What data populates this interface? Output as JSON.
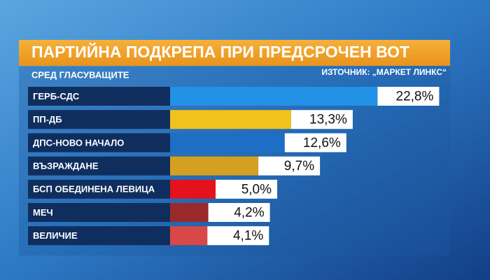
{
  "chart_data": {
    "type": "bar",
    "orientation": "horizontal",
    "title": "ПАРТИЙНА ПОДКРЕПА ПРИ ПРЕДСРОЧЕН ВОТ",
    "subtitle": "СРЕД ГЛАСУВАЩИТЕ",
    "source": "ИЗТОЧНИК: „МАРКЕТ ЛИНКС“",
    "categories": [
      "ГЕРБ-СДС",
      "ПП-ДБ",
      "ДПС-НОВО НАЧАЛО",
      "ВЪЗРАЖДАНЕ",
      "БСП ОБЕДИНЕНА ЛЕВИЦА",
      "МЕЧ",
      "ВЕЛИЧИЕ"
    ],
    "values": [
      22.8,
      13.3,
      12.6,
      9.7,
      5.0,
      4.2,
      4.1
    ],
    "value_labels": [
      "22,8%",
      "13,3%",
      "12,6%",
      "9,7%",
      "5,0%",
      "4,2%",
      "4,1%"
    ],
    "colors": [
      "#2291e6",
      "#f1c21b",
      "#1d6fc6",
      "#d5a020",
      "#e3121c",
      "#9a2a2a",
      "#d84848"
    ]
  }
}
